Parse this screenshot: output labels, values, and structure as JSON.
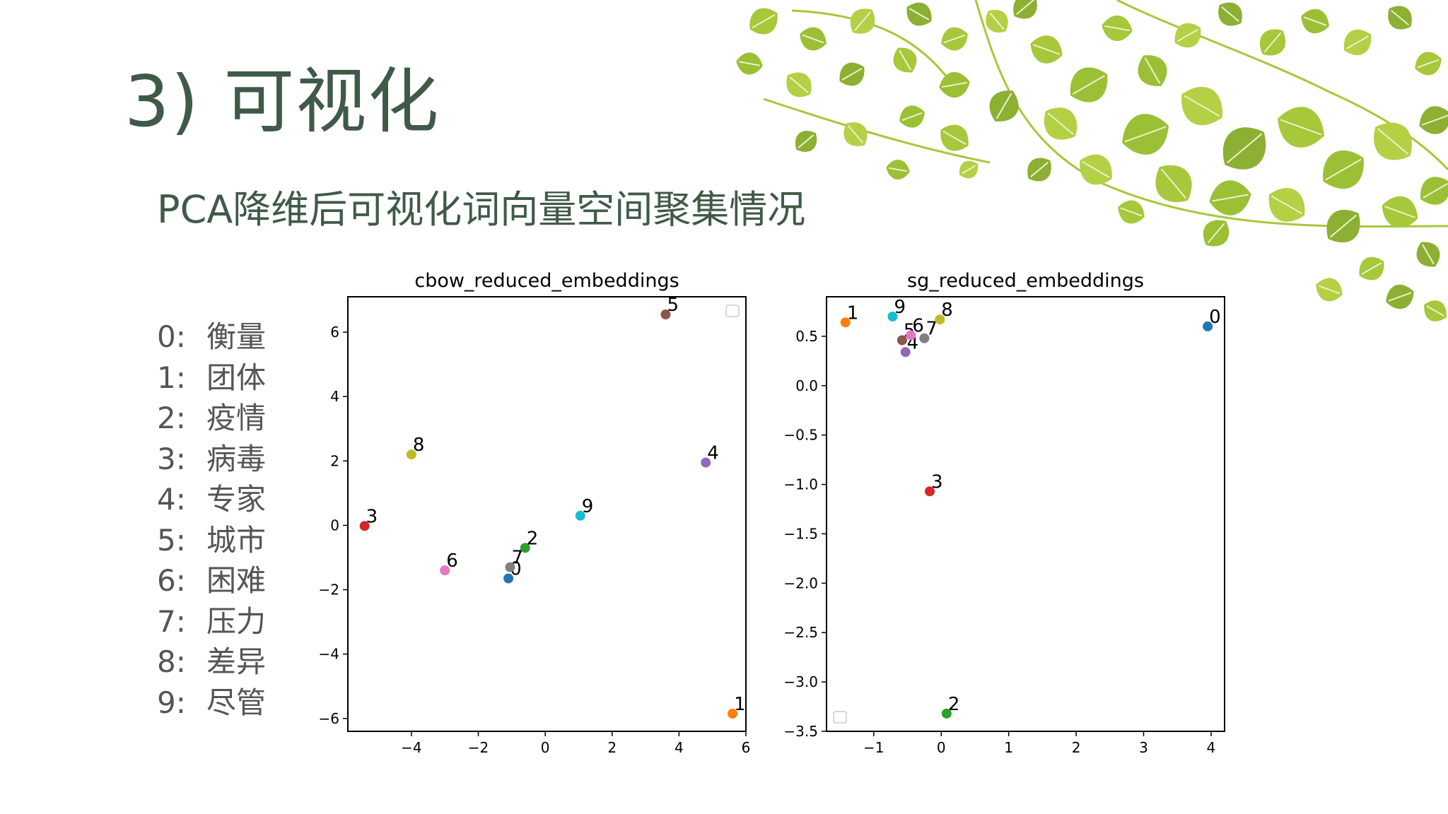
{
  "slide": {
    "title": "3) 可视化",
    "subtitle": "PCA降维后可视化词向量空间聚集情况"
  },
  "legend": [
    {
      "id": "0:",
      "word": "衡量"
    },
    {
      "id": "1:",
      "word": "团体"
    },
    {
      "id": "2:",
      "word": "疫情"
    },
    {
      "id": "3:",
      "word": "病毒"
    },
    {
      "id": "4:",
      "word": "专家"
    },
    {
      "id": "5:",
      "word": "城市"
    },
    {
      "id": "6:",
      "word": "困难"
    },
    {
      "id": "7:",
      "word": "压力"
    },
    {
      "id": "8:",
      "word": "差异"
    },
    {
      "id": "9:",
      "word": "尽管"
    }
  ],
  "colors": {
    "title": "#3f5a48",
    "leaf_light": "#a7c83a",
    "leaf_dark": "#8cb033",
    "points": [
      "#1f77b4",
      "#ff7f0e",
      "#2ca02c",
      "#d62728",
      "#9467bd",
      "#8c564b",
      "#e377c2",
      "#7f7f7f",
      "#bcbd22",
      "#17becf"
    ]
  },
  "chart_data": [
    {
      "type": "scatter",
      "title": "cbow_reduced_embeddings",
      "xlim": [
        -5.9,
        6.0
      ],
      "ylim": [
        -6.4,
        7.1
      ],
      "xticks": [
        -4,
        -2,
        0,
        2,
        4,
        6
      ],
      "xtick_labels": [
        "−4",
        "−2",
        "0",
        "2",
        "4",
        "6"
      ],
      "yticks": [
        -6,
        -4,
        -2,
        0,
        2,
        4,
        6
      ],
      "ytick_labels": [
        "−6",
        "−4",
        "−2",
        "0",
        "2",
        "4",
        "6"
      ],
      "grid": false,
      "legend": "top-right (empty)",
      "points": [
        {
          "label": "0",
          "x": -1.1,
          "y": -1.65
        },
        {
          "label": "1",
          "x": 5.6,
          "y": -5.85
        },
        {
          "label": "2",
          "x": -0.6,
          "y": -0.7
        },
        {
          "label": "3",
          "x": -5.4,
          "y": -0.02
        },
        {
          "label": "4",
          "x": 4.8,
          "y": 1.95
        },
        {
          "label": "5",
          "x": 3.6,
          "y": 6.55
        },
        {
          "label": "6",
          "x": -3.0,
          "y": -1.4
        },
        {
          "label": "7",
          "x": -1.05,
          "y": -1.3
        },
        {
          "label": "8",
          "x": -4.0,
          "y": 2.2
        },
        {
          "label": "9",
          "x": 1.05,
          "y": 0.3
        }
      ]
    },
    {
      "type": "scatter",
      "title": "sg_reduced_embeddings",
      "xlim": [
        -1.7,
        4.2
      ],
      "ylim": [
        -3.5,
        0.9
      ],
      "xticks": [
        -1,
        0,
        1,
        2,
        3,
        4
      ],
      "xtick_labels": [
        "−1",
        "0",
        "1",
        "2",
        "3",
        "4"
      ],
      "yticks": [
        0.5,
        0.0,
        -0.5,
        -1.0,
        -1.5,
        -2.0,
        -2.5,
        -3.0,
        -3.5
      ],
      "ytick_labels": [
        "0.5",
        "0.0",
        "−0.5",
        "−1.0",
        "−1.5",
        "−2.0",
        "−2.5",
        "−3.0",
        "−3.5"
      ],
      "grid": false,
      "legend": "bottom-left (empty)",
      "points": [
        {
          "label": "0",
          "x": 3.95,
          "y": 0.6
        },
        {
          "label": "1",
          "x": -1.42,
          "y": 0.64
        },
        {
          "label": "2",
          "x": 0.08,
          "y": -3.32
        },
        {
          "label": "3",
          "x": -0.17,
          "y": -1.07
        },
        {
          "label": "4",
          "x": -0.53,
          "y": 0.34
        },
        {
          "label": "5",
          "x": -0.58,
          "y": 0.46
        },
        {
          "label": "6",
          "x": -0.45,
          "y": 0.51
        },
        {
          "label": "7",
          "x": -0.25,
          "y": 0.48
        },
        {
          "label": "8",
          "x": -0.02,
          "y": 0.67
        },
        {
          "label": "9",
          "x": -0.72,
          "y": 0.7
        }
      ]
    }
  ]
}
